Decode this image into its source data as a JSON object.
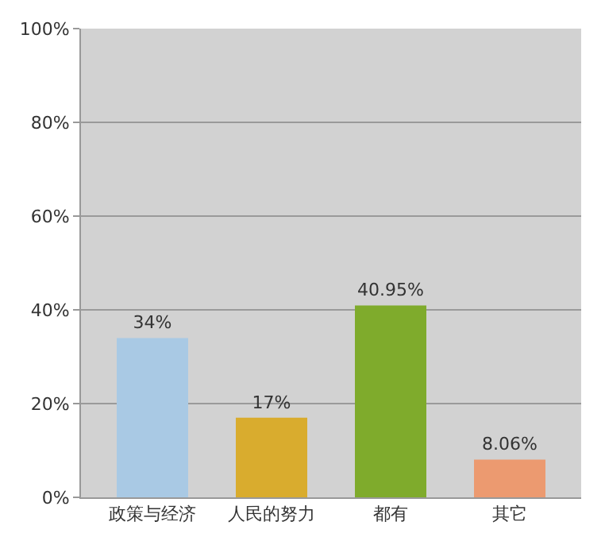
{
  "chart_data": {
    "type": "bar",
    "categories": [
      "政策与经济",
      "人民的努力",
      "都有",
      "其它"
    ],
    "values": [
      34,
      17,
      40.95,
      8.06
    ],
    "colors": [
      "#a9c9e4",
      "#d9ac2e",
      "#7fab2c",
      "#ec9a70"
    ],
    "value_labels": [
      "34%",
      "17%",
      "40.95%",
      "8.06%"
    ],
    "ylim": [
      0,
      100
    ],
    "yticks": [
      {
        "value": 0,
        "label": "0%"
      },
      {
        "value": 20,
        "label": "20%"
      },
      {
        "value": 40,
        "label": "40%"
      },
      {
        "value": 60,
        "label": "60%"
      },
      {
        "value": 80,
        "label": "80%"
      },
      {
        "value": 100,
        "label": "100%"
      }
    ],
    "grid": "y"
  }
}
